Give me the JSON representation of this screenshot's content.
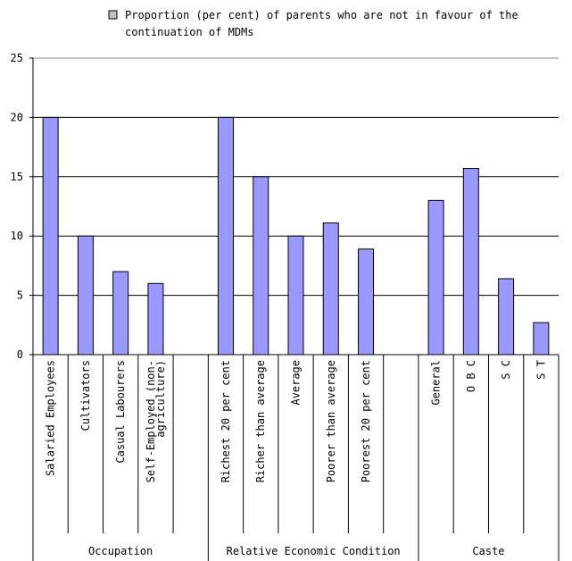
{
  "chart_data": {
    "type": "bar",
    "title": "",
    "xlabel": "",
    "ylabel": "",
    "ylim": [
      0,
      25
    ],
    "yticks": [
      0,
      5,
      10,
      15,
      20,
      25
    ],
    "grid": "horizontal",
    "legend_position": "top",
    "bar_color": "#9999ff",
    "bar_border": "#000000",
    "series": [
      {
        "name": "Proportion (per cent) of parents who are not in favour of the continuation of MDMs",
        "legend_lines": [
          "Proportion (per cent) of parents who are not in favour of the",
          "continuation of MDMs"
        ],
        "values": [
          20,
          10,
          7,
          6,
          null,
          20,
          15,
          10,
          11.1,
          8.9,
          null,
          13,
          15.7,
          6.4,
          2.7
        ]
      }
    ],
    "categories": [
      "Salaried Employees",
      "Cultivators",
      "Casual Labourers",
      "Self-Employed (non-agriculture)",
      "",
      "Richest 20 per cent",
      "Richer than average",
      "Average",
      "Poorer than average",
      "Poorest 20 per cent",
      "",
      "General",
      "O B C",
      "S C",
      "S T"
    ],
    "category_label_lines": [
      [
        "Salaried Employees"
      ],
      [
        "Cultivators"
      ],
      [
        "Casual Labourers"
      ],
      [
        "Self-Employed (non-",
        "agriculture)"
      ],
      [],
      [
        "Richest 20 per cent"
      ],
      [
        "Richer than average"
      ],
      [
        "Average"
      ],
      [
        "Poorer than average"
      ],
      [
        "Poorest 20 per cent"
      ],
      [],
      [
        "General"
      ],
      [
        "O B C"
      ],
      [
        "S C"
      ],
      [
        "S T"
      ]
    ],
    "groups": [
      {
        "label": "Occupation",
        "count": 5
      },
      {
        "label": "Relative Economic Condition",
        "count": 6
      },
      {
        "label": "Caste",
        "count": 4
      }
    ]
  }
}
